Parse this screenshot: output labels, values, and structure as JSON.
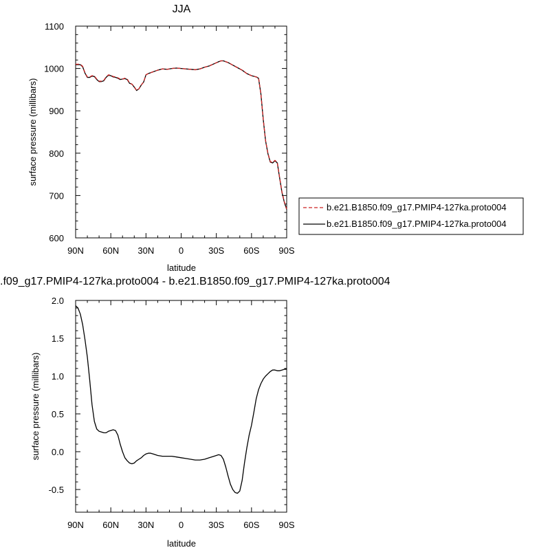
{
  "chart_data": [
    {
      "type": "line",
      "title": "JJA",
      "xlabel": "latitude",
      "ylabel": "surface pressure (millibars)",
      "xlim": [
        90,
        -90
      ],
      "ylim": [
        600,
        1100
      ],
      "xticks": [
        90,
        60,
        30,
        0,
        -30,
        -60,
        -90
      ],
      "xtick_labels": [
        "90N",
        "60N",
        "30N",
        "0",
        "30S",
        "60S",
        "90S"
      ],
      "yticks": [
        600,
        700,
        800,
        900,
        1000,
        1100
      ],
      "ytick_labels": [
        "600",
        "700",
        "800",
        "900",
        "1000",
        "1100"
      ],
      "grid": false,
      "legend": "right",
      "series": [
        {
          "name": "b.e21.B1850.f09_g17.PMIP4-127ka.proto004",
          "color": "#cc2222",
          "dash": "dashed",
          "x": [
            90,
            86,
            84,
            82,
            80,
            78,
            76,
            74,
            72,
            70,
            68,
            66,
            64,
            62,
            60,
            58,
            56,
            54,
            52,
            50,
            48,
            46,
            44,
            42,
            40,
            38,
            36,
            34,
            32,
            30,
            28,
            26,
            24,
            20,
            16,
            12,
            8,
            4,
            0,
            -4,
            -8,
            -12,
            -16,
            -20,
            -24,
            -28,
            -32,
            -34,
            -36,
            -40,
            -44,
            -48,
            -52,
            -56,
            -60,
            -64,
            -66,
            -68,
            -70,
            -72,
            -74,
            -76,
            -78,
            -80,
            -82,
            -84,
            -86,
            -88,
            -90
          ],
          "y": [
            1010,
            1010,
            1005,
            990,
            980,
            980,
            983,
            982,
            975,
            970,
            970,
            972,
            980,
            985,
            984,
            981,
            980,
            978,
            975,
            975,
            977,
            975,
            966,
            963,
            957,
            948,
            952,
            961,
            968,
            985,
            988,
            990,
            992,
            996,
            999,
            998,
            1000,
            1001,
            1000,
            999,
            998,
            997,
            999,
            1003,
            1006,
            1011,
            1016,
            1018,
            1018,
            1014,
            1008,
            1002,
            996,
            988,
            983,
            980,
            978,
            940,
            880,
            830,
            800,
            780,
            778,
            783,
            778,
            742,
            708,
            685,
            668
          ]
        },
        {
          "name": "b.e21.B1850.f09_g17.PMIP4-127ka.proto004",
          "color": "#000000",
          "dash": "solid",
          "x": [
            90,
            86,
            84,
            82,
            80,
            78,
            76,
            74,
            72,
            70,
            68,
            66,
            64,
            62,
            60,
            58,
            56,
            54,
            52,
            50,
            48,
            46,
            44,
            42,
            40,
            38,
            36,
            34,
            32,
            30,
            28,
            26,
            24,
            20,
            16,
            12,
            8,
            4,
            0,
            -4,
            -8,
            -12,
            -16,
            -20,
            -24,
            -28,
            -32,
            -34,
            -36,
            -40,
            -44,
            -48,
            -52,
            -56,
            -60,
            -64,
            -66,
            -68,
            -70,
            -72,
            -74,
            -76,
            -78,
            -80,
            -82,
            -84,
            -86,
            -88,
            -90
          ],
          "y": [
            1009,
            1009,
            1004,
            989,
            979,
            979,
            982,
            981,
            974,
            969,
            969,
            971,
            979,
            984,
            983,
            980,
            979,
            977,
            974,
            975,
            976,
            974,
            965,
            963,
            956,
            948,
            952,
            961,
            968,
            985,
            988,
            990,
            992,
            996,
            999,
            998,
            1000,
            1001,
            1000,
            999,
            998,
            997,
            999,
            1003,
            1006,
            1011,
            1016,
            1018,
            1018,
            1014,
            1008,
            1002,
            996,
            988,
            983,
            980,
            977,
            940,
            880,
            829,
            799,
            779,
            777,
            782,
            777,
            741,
            707,
            684,
            667
          ]
        }
      ]
    },
    {
      "type": "line",
      "title": ".f09_g17.PMIP4-127ka.proto004 - b.e21.B1850.f09_g17.PMIP4-127ka.proto004",
      "xlabel": "latitude",
      "ylabel": "surface pressure (millibars)",
      "xlim": [
        90,
        -90
      ],
      "ylim": [
        -0.8,
        2.0
      ],
      "xticks": [
        90,
        60,
        30,
        0,
        -30,
        -60,
        -90
      ],
      "xtick_labels": [
        "90N",
        "60N",
        "30N",
        "0",
        "30S",
        "60S",
        "90S"
      ],
      "yticks": [
        -0.5,
        0.0,
        0.5,
        1.0,
        1.5,
        2.0
      ],
      "ytick_labels": [
        "-0.5",
        "0.0",
        "0.5",
        "1.0",
        "1.5",
        "2.0"
      ],
      "grid": false,
      "series": [
        {
          "color": "#000000",
          "dash": "solid",
          "x": [
            90,
            88,
            86,
            84,
            82,
            80,
            78,
            76,
            74,
            72,
            70,
            68,
            66,
            64,
            62,
            60,
            58,
            56,
            54,
            52,
            50,
            48,
            46,
            44,
            42,
            40,
            38,
            36,
            34,
            32,
            30,
            28,
            26,
            24,
            22,
            20,
            16,
            12,
            8,
            4,
            0,
            -4,
            -8,
            -12,
            -16,
            -20,
            -24,
            -28,
            -30,
            -32,
            -34,
            -36,
            -38,
            -40,
            -42,
            -44,
            -46,
            -48,
            -50,
            -52,
            -54,
            -56,
            -58,
            -60,
            -62,
            -64,
            -66,
            -68,
            -70,
            -72,
            -74,
            -76,
            -78,
            -80,
            -82,
            -84,
            -86,
            -88,
            -90
          ],
          "y": [
            1.93,
            1.9,
            1.82,
            1.68,
            1.48,
            1.25,
            0.95,
            0.62,
            0.4,
            0.3,
            0.27,
            0.26,
            0.25,
            0.25,
            0.27,
            0.28,
            0.29,
            0.28,
            0.22,
            0.1,
            0.0,
            -0.08,
            -0.12,
            -0.15,
            -0.16,
            -0.15,
            -0.12,
            -0.1,
            -0.08,
            -0.05,
            -0.03,
            -0.02,
            -0.02,
            -0.03,
            -0.04,
            -0.05,
            -0.06,
            -0.06,
            -0.06,
            -0.07,
            -0.08,
            -0.09,
            -0.1,
            -0.11,
            -0.11,
            -0.1,
            -0.08,
            -0.06,
            -0.05,
            -0.04,
            -0.05,
            -0.1,
            -0.2,
            -0.32,
            -0.43,
            -0.5,
            -0.54,
            -0.55,
            -0.52,
            -0.38,
            -0.15,
            0.05,
            0.22,
            0.35,
            0.52,
            0.7,
            0.82,
            0.9,
            0.96,
            1.0,
            1.03,
            1.06,
            1.08,
            1.08,
            1.07,
            1.07,
            1.08,
            1.09,
            1.09
          ]
        }
      ]
    }
  ]
}
